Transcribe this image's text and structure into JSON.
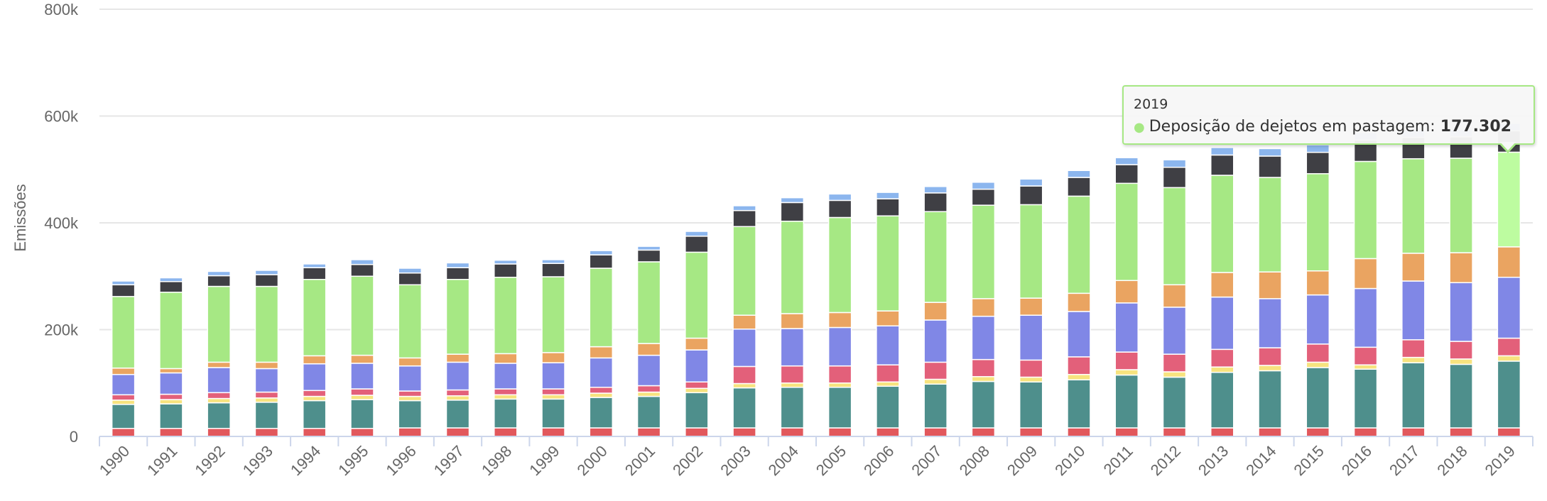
{
  "chart_data": {
    "type": "bar",
    "stacked": true,
    "xlabel": "",
    "ylabel": "Emissões",
    "ylim": [
      0,
      800000
    ],
    "yticks": [
      "0",
      "200k",
      "400k",
      "600k",
      "800k"
    ],
    "grid": true,
    "categories": [
      "1990",
      "1991",
      "1992",
      "1993",
      "1994",
      "1995",
      "1996",
      "1997",
      "1998",
      "1999",
      "2000",
      "2001",
      "2002",
      "2003",
      "2004",
      "2005",
      "2006",
      "2007",
      "2008",
      "2009",
      "2010",
      "2011",
      "2012",
      "2013",
      "2014",
      "2015",
      "2016",
      "2017",
      "2018",
      "2019"
    ],
    "series": [
      {
        "color": "#e2585c",
        "values": [
          15000,
          15000,
          15000,
          15000,
          15000,
          15000,
          16000,
          16000,
          16000,
          16000,
          16000,
          16000,
          16000,
          16000,
          16000,
          16000,
          16000,
          16000,
          16000,
          16000,
          16000,
          16000,
          16000,
          16000,
          16000,
          16000,
          16000,
          16000,
          16000,
          16000
        ]
      },
      {
        "color": "#4e8f8c",
        "values": [
          45000,
          46000,
          48000,
          49000,
          52000,
          54000,
          51000,
          52000,
          54000,
          54000,
          57000,
          59000,
          66000,
          75000,
          76000,
          76000,
          78000,
          82000,
          87000,
          86000,
          90000,
          99000,
          95000,
          104000,
          107000,
          113000,
          110000,
          122000,
          119000,
          125000
        ]
      },
      {
        "color": "#f7e37f",
        "values": [
          8000,
          8000,
          8000,
          8000,
          8000,
          8000,
          8000,
          8000,
          8000,
          8000,
          8000,
          8000,
          8000,
          8000,
          8000,
          8000,
          8000,
          9000,
          9000,
          9000,
          10000,
          10000,
          10000,
          10000,
          10000,
          10000,
          8000,
          10000,
          10000,
          10000
        ]
      },
      {
        "color": "#e3607a",
        "values": [
          10000,
          10000,
          11000,
          11000,
          11000,
          12000,
          10000,
          11000,
          11000,
          11000,
          11000,
          12000,
          12000,
          32000,
          32000,
          32000,
          32000,
          32000,
          32000,
          32000,
          33000,
          33000,
          33000,
          33000,
          33000,
          34000,
          33000,
          33000,
          33000,
          33000
        ]
      },
      {
        "color": "#8087e6",
        "values": [
          38000,
          40000,
          47000,
          44000,
          50000,
          48000,
          47000,
          52000,
          48000,
          49000,
          55000,
          57000,
          60000,
          70000,
          70000,
          72000,
          73000,
          79000,
          81000,
          84000,
          85000,
          92000,
          88000,
          98000,
          92000,
          92000,
          110000,
          110000,
          110000,
          114000
        ]
      },
      {
        "color": "#eaa461",
        "values": [
          12000,
          8000,
          10000,
          12000,
          15000,
          15000,
          15000,
          15000,
          18000,
          19000,
          21000,
          22000,
          22000,
          26000,
          28000,
          28000,
          28000,
          33000,
          33000,
          32000,
          34000,
          42000,
          42000,
          46000,
          50000,
          45000,
          56000,
          52000,
          56000,
          57000
        ]
      },
      {
        "color": "#a6e884",
        "values": [
          134000,
          143000,
          142000,
          142000,
          143000,
          148000,
          137000,
          140000,
          143000,
          142000,
          147000,
          153000,
          161000,
          166000,
          173000,
          178000,
          178000,
          170000,
          175000,
          175000,
          182000,
          182000,
          182000,
          182000,
          177000,
          182000,
          182000,
          177000,
          177000,
          177302
        ]
      },
      {
        "color": "#3f3f44",
        "values": [
          22000,
          20000,
          20000,
          22000,
          22000,
          22000,
          22000,
          22000,
          25000,
          25000,
          25000,
          22000,
          30000,
          30000,
          35000,
          32000,
          32000,
          35000,
          30000,
          35000,
          35000,
          35000,
          38000,
          38000,
          40000,
          40000,
          40000,
          40000,
          40000,
          40000
        ]
      },
      {
        "color": "#8cb6ee",
        "values": [
          7000,
          7000,
          8000,
          8000,
          7000,
          9000,
          9000,
          9000,
          7000,
          7000,
          8000,
          7000,
          9000,
          9000,
          9000,
          12000,
          12000,
          12000,
          13000,
          13000,
          13000,
          13000,
          14000,
          14000,
          14000,
          14000,
          14000,
          14000,
          14000,
          14000
        ]
      }
    ]
  },
  "tooltip": {
    "year": "2019",
    "series_label": "Deposição de dejetos em pastagem:",
    "value": "177.302",
    "marker": "●"
  }
}
